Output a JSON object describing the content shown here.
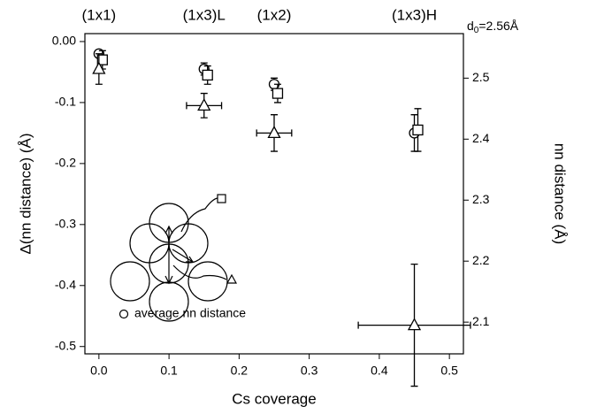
{
  "chart_data": {
    "type": "scatter",
    "xlabel": "Cs coverage",
    "ylabel": "Δ(nn distance) (Å)",
    "y2label": "nn distance (Å)",
    "y2_annotation": {
      "main": "d",
      "sub": "0",
      "rest": "=2.56Å"
    },
    "phases": [
      {
        "label": "(1x1)",
        "x": 0.0
      },
      {
        "label": "(1x3)L",
        "x": 0.15
      },
      {
        "label": "(1x2)",
        "x": 0.25
      },
      {
        "label": "(1x3)H",
        "x": 0.45
      }
    ],
    "xlim": [
      -0.02,
      0.52
    ],
    "xticks": [
      {
        "value": 0,
        "label": "0.0"
      },
      0.1,
      0.2,
      0.3,
      0.4,
      0.5
    ],
    "ylim": [
      -0.512,
      0.013
    ],
    "yticks": [
      {
        "value": 0,
        "label": "0.00"
      },
      -0.1,
      -0.2,
      -0.3,
      -0.4,
      -0.5
    ],
    "y2lim": [
      2.048,
      2.573
    ],
    "y2ticks": [
      2.1,
      2.2,
      2.3,
      2.4,
      2.5
    ],
    "series": [
      {
        "name": "average nn distance",
        "marker": "circle",
        "color": "#000000",
        "x": [
          0.0,
          0.15,
          0.25,
          0.45
        ],
        "values": [
          -0.02,
          -0.045,
          -0.07,
          -0.15
        ],
        "yerr": [
          null,
          0.01,
          0.01,
          0.03
        ],
        "xerr": [
          null,
          null,
          null,
          null
        ]
      },
      {
        "marker": "square",
        "color": "#000000",
        "x": [
          0.005,
          0.155,
          0.255,
          0.455
        ],
        "values": [
          -0.03,
          -0.055,
          -0.085,
          -0.145
        ],
        "yerr": [
          0.015,
          0.015,
          0.015,
          0.035
        ],
        "xerr": [
          null,
          null,
          null,
          null
        ]
      },
      {
        "marker": "triangle",
        "color": "#000000",
        "x": [
          0.0,
          0.15,
          0.25,
          0.45
        ],
        "values": [
          -0.045,
          -0.105,
          -0.15,
          -0.465
        ],
        "yerr": [
          0.025,
          0.02,
          0.03,
          0.1
        ],
        "xerr": [
          null,
          0.025,
          0.025,
          0.08
        ]
      }
    ]
  }
}
